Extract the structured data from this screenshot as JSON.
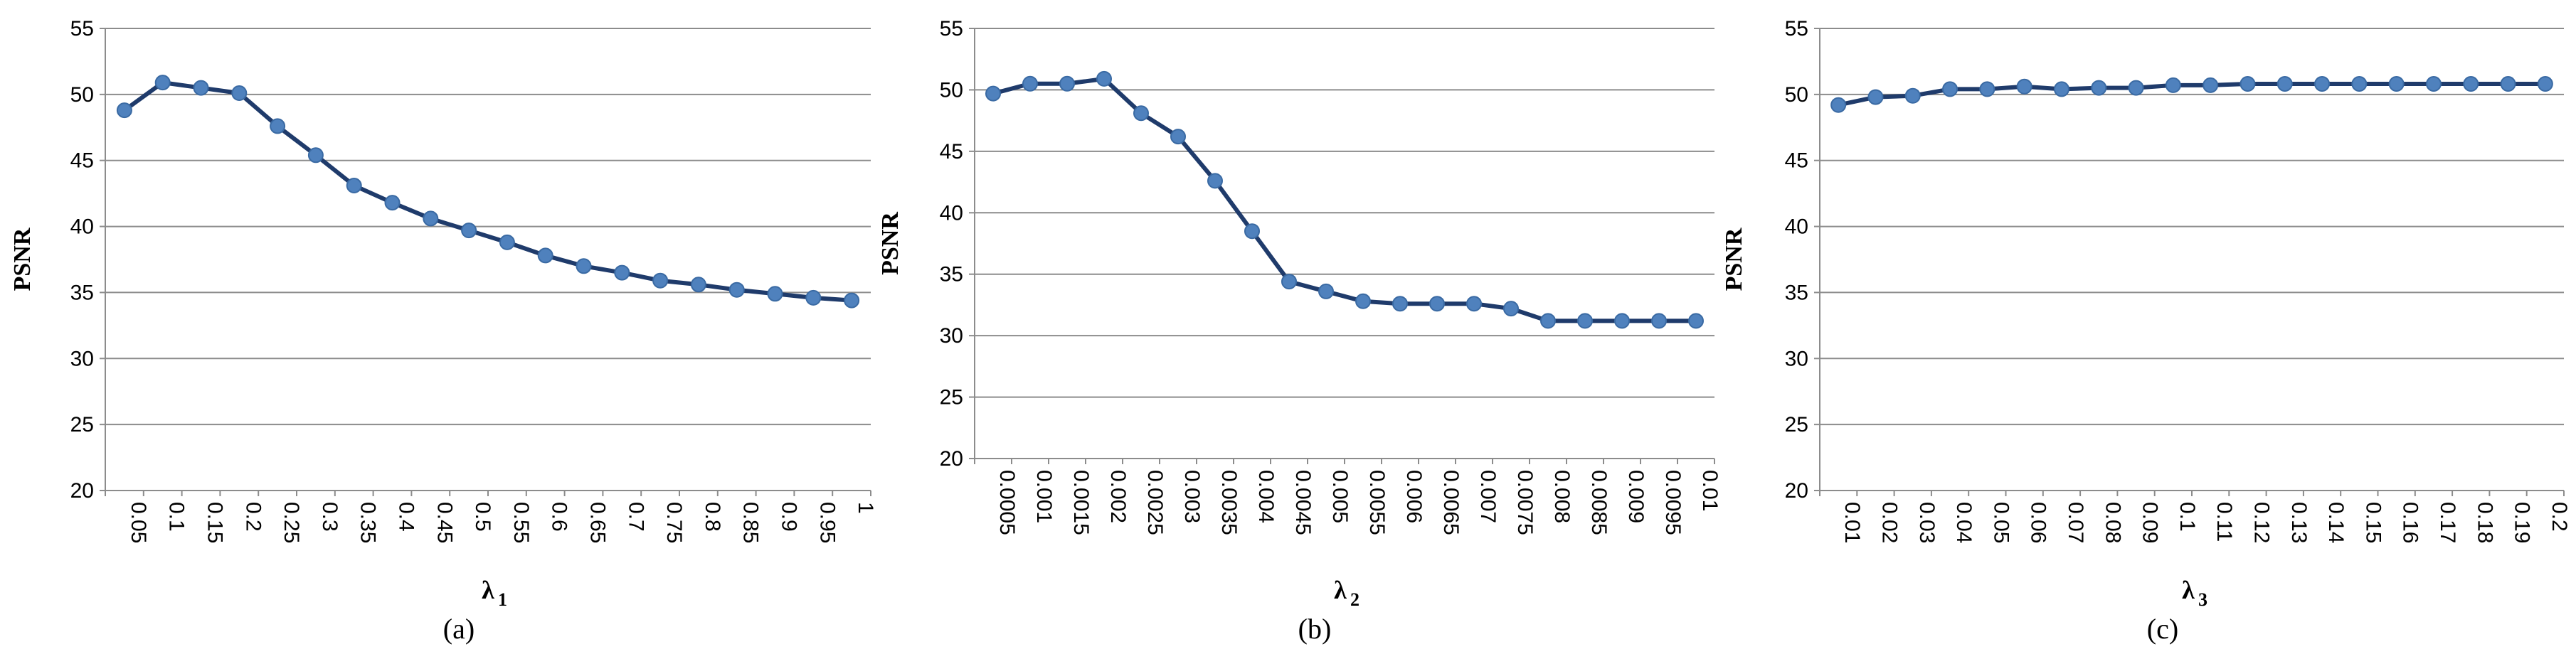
{
  "chart_data": [
    {
      "type": "line",
      "caption": "(a)",
      "ylabel": "PSNR",
      "xlabel": "λ",
      "xlabel_sub": "1",
      "ylim": [
        20,
        55
      ],
      "yticks": [
        20,
        25,
        30,
        35,
        40,
        45,
        50,
        55
      ],
      "grid": true,
      "categories": [
        "0.05",
        "0.1",
        "0.15",
        "0.2",
        "0.25",
        "0.3",
        "0.35",
        "0.4",
        "0.45",
        "0.5",
        "0.55",
        "0.6",
        "0.65",
        "0.7",
        "0.75",
        "0.8",
        "0.85",
        "0.9",
        "0.95",
        "1"
      ],
      "values": [
        48.8,
        50.9,
        50.5,
        50.1,
        47.6,
        45.4,
        43.1,
        41.8,
        40.6,
        39.7,
        38.8,
        37.8,
        37.0,
        36.5,
        35.9,
        35.6,
        35.2,
        34.9,
        34.6,
        34.4
      ],
      "color": "#1f3b6b",
      "marker_color": "#4f81bd"
    },
    {
      "type": "line",
      "caption": "(b)",
      "ylabel": "PSNR",
      "xlabel": "λ",
      "xlabel_sub": "2",
      "ylim": [
        20,
        55
      ],
      "yticks": [
        20,
        25,
        30,
        35,
        40,
        45,
        50,
        55
      ],
      "grid": true,
      "categories": [
        "0.0005",
        "0.001",
        "0.0015",
        "0.002",
        "0.0025",
        "0.003",
        "0.0035",
        "0.004",
        "0.0045",
        "0.005",
        "0.0055",
        "0.006",
        "0.0065",
        "0.007",
        "0.0075",
        "0.008",
        "0.0085",
        "0.009",
        "0.0095",
        "0.01"
      ],
      "values": [
        49.7,
        50.5,
        50.5,
        50.9,
        48.1,
        46.2,
        42.6,
        38.5,
        34.4,
        33.6,
        32.8,
        32.6,
        32.6,
        32.6,
        32.2,
        31.2,
        31.2,
        31.2,
        31.2,
        31.2
      ],
      "color": "#1f3b6b",
      "marker_color": "#4f81bd"
    },
    {
      "type": "line",
      "caption": "(c)",
      "ylabel": "PSNR",
      "xlabel": "λ",
      "xlabel_sub": "3",
      "ylim": [
        20,
        55
      ],
      "yticks": [
        20,
        25,
        30,
        35,
        40,
        45,
        50,
        55
      ],
      "grid": true,
      "categories": [
        "0.01",
        "0.02",
        "0.03",
        "0.04",
        "0.05",
        "0.06",
        "0.07",
        "0.08",
        "0.09",
        "0.1",
        "0.11",
        "0.12",
        "0.13",
        "0.14",
        "0.15",
        "0.16",
        "0.17",
        "0.18",
        "0.19",
        "0.2"
      ],
      "values": [
        49.2,
        49.8,
        49.9,
        50.4,
        50.4,
        50.6,
        50.4,
        50.5,
        50.5,
        50.7,
        50.7,
        50.8,
        50.8,
        50.8,
        50.8,
        50.8,
        50.8,
        50.8,
        50.8,
        50.8
      ],
      "color": "#1f3b6b",
      "marker_color": "#4f81bd"
    }
  ]
}
